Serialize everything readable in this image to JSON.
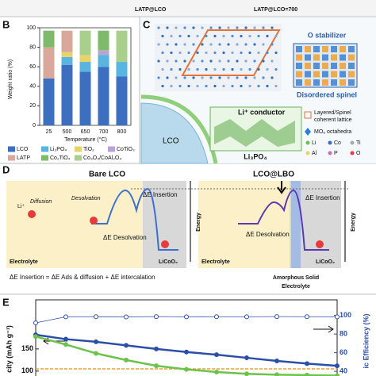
{
  "top_strip": {
    "labels": [
      "LATP@LCO",
      "LATP@LCO=700"
    ]
  },
  "panel_b": {
    "letter": "B",
    "ylabel": "Weight ratio (%)",
    "xlabel": "Temperature (°C)",
    "categories": [
      "25",
      "500",
      "650",
      "700",
      "800"
    ],
    "ylim": [
      0,
      100
    ],
    "yticks": [
      0,
      20,
      40,
      60,
      80,
      100
    ],
    "series": [
      {
        "name": "LCO",
        "color": "#3d6fc0",
        "values": [
          48,
          62,
          55,
          60,
          50
        ]
      },
      {
        "name": "Li₃PO₄",
        "color": "#5ab4e0",
        "values": [
          0,
          8,
          10,
          12,
          15
        ]
      },
      {
        "name": "TiO₂",
        "color": "#e8d36a",
        "values": [
          0,
          5,
          7,
          0,
          0
        ]
      },
      {
        "name": "CoTiO₃",
        "color": "#b9a2d4",
        "values": [
          0,
          0,
          0,
          5,
          0
        ]
      },
      {
        "name": "LATP",
        "color": "#d9a89a",
        "values": [
          32,
          22,
          0,
          0,
          0
        ]
      },
      {
        "name": "Co₂TiO₄",
        "color": "#7dbb6a",
        "values": [
          17,
          0,
          0,
          20,
          0
        ]
      },
      {
        "name": "Co₃O₄/CoAl₂O₄",
        "color": "#a9cf8c",
        "values": [
          0,
          0,
          25,
          0,
          32
        ]
      }
    ]
  },
  "panel_c": {
    "letter": "C",
    "o_stabilizer": "O stabilizer",
    "disordered_spinel": "Disordered spinel",
    "li_conductor": "Li⁺ conductor",
    "li3po4": "Li₃PO₄",
    "lco": "LCO",
    "legend": [
      "Layered/Spinel",
      "coherent lattice",
      "MO₆ octahedra"
    ],
    "atoms": [
      "Li",
      "Co",
      "Ti",
      "Al",
      "P",
      "O"
    ]
  },
  "panel_d": {
    "letter": "D",
    "bare_title": "Bare LCO",
    "coated_title": "LCO@LBO",
    "desolvation": "Desolvation",
    "diffusion": "Diffusion",
    "de_insertion": "ΔE Insertion",
    "de_desolvation": "ΔE Desolvation",
    "energy": "Energy",
    "electrolyte": "Electrolyte",
    "licoo2": "LiCoO₂",
    "li_ion": "Li⁺",
    "formula": "ΔE Insertion = ΔE Ads & diffusion + ΔE intercalation",
    "amorphous": [
      "Amorphous Solid",
      "Electrolyte"
    ]
  },
  "panel_e": {
    "letter": "E",
    "ylabel": "city (mAh g⁻¹)",
    "y2label": "ic Efficiency (%)",
    "xlim": [
      0,
      500
    ],
    "ylim": [
      89,
      257
    ],
    "yticks": [
      100,
      150
    ],
    "y2lim": [
      35,
      115
    ],
    "y2ticks": [
      40,
      60,
      80,
      100
    ],
    "x": [
      0,
      50,
      100,
      150,
      200,
      250,
      300,
      350,
      400,
      450,
      500
    ],
    "series": [
      {
        "color": "#2a4fa8",
        "values": [
          182,
          172,
          166,
          158,
          150,
          143,
          137,
          130,
          123,
          117,
          112
        ]
      },
      {
        "color": "#6cc24a",
        "values": [
          178,
          160,
          140,
          125,
          112,
          104,
          98,
          94,
          92,
          91,
          90
        ]
      },
      {
        "color": "#2a4fa8",
        "axis": "y2",
        "values": [
          92,
          98.5,
          98.6,
          98.4,
          98.7,
          98.5,
          98.6,
          98.5,
          98.7,
          98.6,
          98.5
        ]
      }
    ]
  }
}
